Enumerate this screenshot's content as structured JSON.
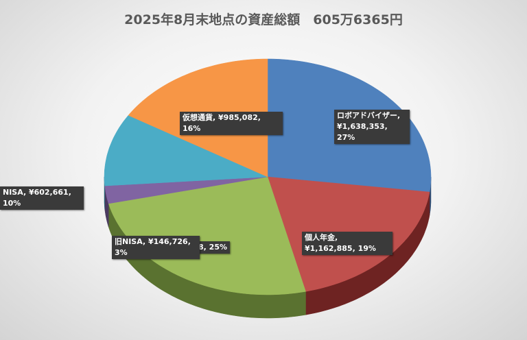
{
  "chart_data": {
    "type": "pie",
    "title": "2025年8月末地点の資産総額　605万6365円",
    "values": [
      1638353,
      1162885,
      1520658,
      146726,
      602661,
      985082
    ],
    "value_labels": [
      "ロボアドバイザー, ¥1,638,353, 27%",
      "個人年金, ¥1,162,885, 19%",
      "8, 25%",
      "旧NISA, ¥146,726, 3%",
      "NISA, ¥602,661, 10%",
      "仮想通貨, ¥985,082, 16%"
    ],
    "colors": [
      "#4f81bd",
      "#c0504d",
      "#9bbb59",
      "#8064a2",
      "#4bacc6",
      "#f79646"
    ],
    "side_colors": [
      "#2c4d75",
      "#6e2322",
      "#5a7230",
      "#4a3a60",
      "#2b6677",
      "#a55a1a"
    ]
  }
}
